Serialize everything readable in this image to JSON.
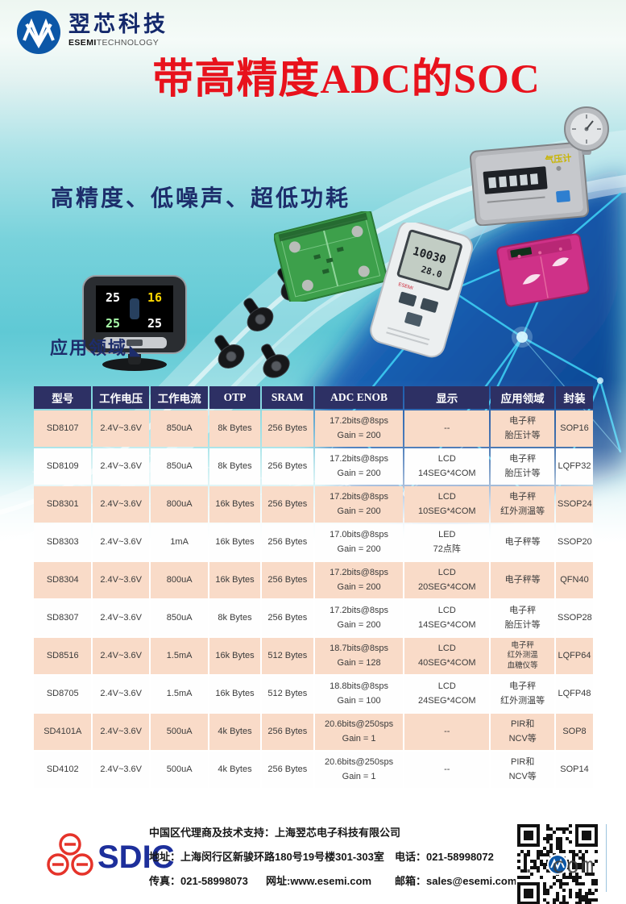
{
  "brand": {
    "logo_cn": "翌芯科技",
    "logo_en_bold": "ESEMI",
    "logo_en_rest": "TECHNOLOGY"
  },
  "title": "带高精度ADC的SOC",
  "subtitle": "高精度、低噪声、超低功耗",
  "section": {
    "label": "应用领域",
    "arrow": "◣"
  },
  "devices": {
    "tpms_monitor": {
      "values": [
        "25",
        "16",
        "25",
        "25"
      ]
    },
    "meter": {
      "reading_top": "10030",
      "reading_bottom": "28.0"
    },
    "barometer": {
      "label": "气压计"
    }
  },
  "table": {
    "columns": [
      "型号",
      "工作电压",
      "工作电流",
      "OTP",
      "SRAM",
      "ADC ENOB",
      "显示",
      "应用领域",
      "封装"
    ],
    "rows": [
      {
        "cells": [
          [
            "SD8107"
          ],
          [
            "2.4V~3.6V"
          ],
          [
            "850uA"
          ],
          [
            "8k Bytes"
          ],
          [
            "256 Bytes"
          ],
          [
            "17.2bits@8sps",
            "Gain = 200"
          ],
          [
            "--"
          ],
          [
            "电子秤",
            "胎压计等"
          ],
          [
            "SOP16"
          ]
        ]
      },
      {
        "cells": [
          [
            "SD8109"
          ],
          [
            "2.4V~3.6V"
          ],
          [
            "850uA"
          ],
          [
            "8k Bytes"
          ],
          [
            "256 Bytes"
          ],
          [
            "17.2bits@8sps",
            "Gain = 200"
          ],
          [
            "LCD",
            "14SEG*4COM"
          ],
          [
            "电子秤",
            "胎压计等"
          ],
          [
            "LQFP32"
          ]
        ]
      },
      {
        "cells": [
          [
            "SD8301"
          ],
          [
            "2.4V~3.6V"
          ],
          [
            "800uA"
          ],
          [
            "16k Bytes"
          ],
          [
            "256 Bytes"
          ],
          [
            "17.2bits@8sps",
            "Gain = 200"
          ],
          [
            "LCD",
            "10SEG*4COM"
          ],
          [
            "电子秤",
            "红外测温等"
          ],
          [
            "SSOP24"
          ]
        ]
      },
      {
        "cells": [
          [
            "SD8303"
          ],
          [
            "2.4V~3.6V"
          ],
          [
            "1mA"
          ],
          [
            "16k Bytes"
          ],
          [
            "256 Bytes"
          ],
          [
            "17.0bits@8sps",
            "Gain = 200"
          ],
          [
            "LED",
            "72点阵"
          ],
          [
            "电子秤等"
          ],
          [
            "SSOP20"
          ]
        ]
      },
      {
        "cells": [
          [
            "SD8304"
          ],
          [
            "2.4V~3.6V"
          ],
          [
            "800uA"
          ],
          [
            "16k Bytes"
          ],
          [
            "256 Bytes"
          ],
          [
            "17.2bits@8sps",
            "Gain = 200"
          ],
          [
            "LCD",
            "20SEG*4COM"
          ],
          [
            "电子秤等"
          ],
          [
            "QFN40"
          ]
        ]
      },
      {
        "cells": [
          [
            "SD8307"
          ],
          [
            "2.4V~3.6V"
          ],
          [
            "850uA"
          ],
          [
            "8k Bytes"
          ],
          [
            "256 Bytes"
          ],
          [
            "17.2bits@8sps",
            "Gain = 200"
          ],
          [
            "LCD",
            "14SEG*4COM"
          ],
          [
            "电子秤",
            "胎压计等"
          ],
          [
            "SSOP28"
          ]
        ]
      },
      {
        "cells": [
          [
            "SD8516"
          ],
          [
            "2.4V~3.6V"
          ],
          [
            "1.5mA"
          ],
          [
            "16k Bytes"
          ],
          [
            "512 Bytes"
          ],
          [
            "18.7bits@8sps",
            "Gain = 128"
          ],
          [
            "LCD",
            "40SEG*4COM"
          ],
          [
            "电子秤",
            "红外测温",
            "血糖仪等"
          ],
          [
            "LQFP64"
          ]
        ]
      },
      {
        "cells": [
          [
            "SD8705"
          ],
          [
            "2.4V~3.6V"
          ],
          [
            "1.5mA"
          ],
          [
            "16k Bytes"
          ],
          [
            "512 Bytes"
          ],
          [
            "18.8bits@8sps",
            "Gain = 100"
          ],
          [
            "LCD",
            "24SEG*4COM"
          ],
          [
            "电子秤",
            "红外测温等"
          ],
          [
            "LQFP48"
          ]
        ]
      },
      {
        "cells": [
          [
            "SD4101A"
          ],
          [
            "2.4V~3.6V"
          ],
          [
            "500uA"
          ],
          [
            "4k Bytes"
          ],
          [
            "256 Bytes"
          ],
          [
            "20.6bits@250sps",
            "Gain = 1"
          ],
          [
            "--"
          ],
          [
            "PIR和",
            "NCV等"
          ],
          [
            "SOP8"
          ]
        ]
      },
      {
        "cells": [
          [
            "SD4102"
          ],
          [
            "2.4V~3.6V"
          ],
          [
            "500uA"
          ],
          [
            "4k Bytes"
          ],
          [
            "256 Bytes"
          ],
          [
            "20.6bits@250sps",
            "Gain = 1"
          ],
          [
            "--"
          ],
          [
            "PIR和",
            "NCV等"
          ],
          [
            "SOP14"
          ]
        ]
      }
    ]
  },
  "footer": {
    "logo_text": "SDIC",
    "line1": "中国区代理商及技术支持：上海翌芯电子科技有限公司",
    "address": "地址：上海闵行区新骏环路180号19号楼301-303室",
    "phone": "电话：021-58998072",
    "fax": "传真：021-58998073",
    "website": "网址:www.esemi.com",
    "email": "邮箱：sales@esemi.com",
    "watermark": ". com"
  },
  "colors": {
    "accent_red": "#e8121c",
    "navy": "#1d2d6b",
    "header_bg": "#2d3064",
    "row_pink": "#f9dbc8",
    "teal": "#5fc9d5",
    "deep_blue": "#1456a8",
    "plexus": "#3fd4f7",
    "sdic_blue": "#1d2f9b",
    "sdic_red": "#e5332a"
  }
}
